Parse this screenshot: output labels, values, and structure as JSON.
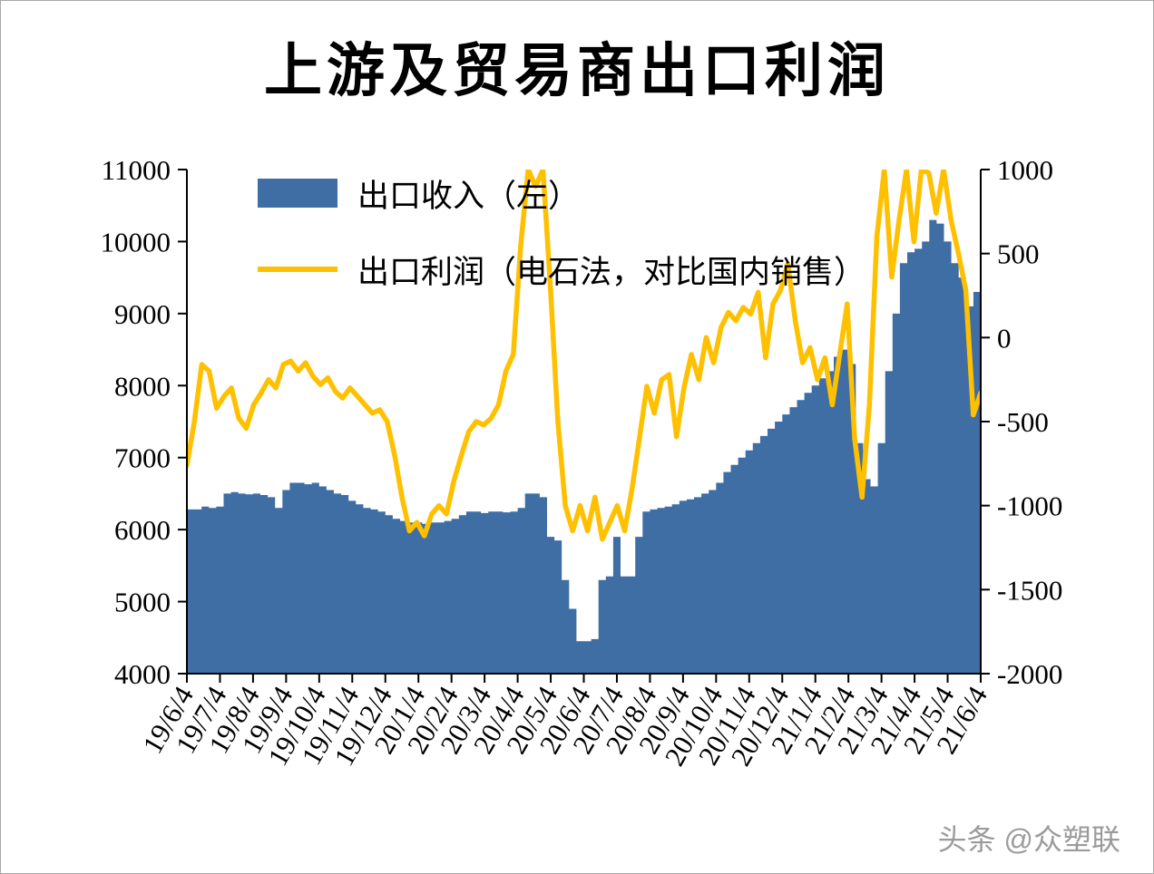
{
  "title": "上游及贸易商出口利润",
  "watermark": "头条 @众塑联",
  "legend": [
    {
      "label": "出口收入（左）",
      "swatch": "area",
      "color": "#3F6EA5"
    },
    {
      "label": "出口利润（电石法，对比国内销售）",
      "swatch": "line",
      "color": "#FFC000"
    }
  ],
  "chart_data": {
    "type": "combo",
    "title": "上游及贸易商出口利润",
    "grid": false,
    "legend_position": "inside-top-left",
    "x_frequency": "weekly",
    "x_tick_labels": [
      "19/6/4",
      "19/7/4",
      "19/8/4",
      "19/9/4",
      "19/10/4",
      "19/11/4",
      "19/12/4",
      "20/1/4",
      "20/2/4",
      "20/3/4",
      "20/4/4",
      "20/5/4",
      "20/6/4",
      "20/7/4",
      "20/8/4",
      "20/9/4",
      "20/10/4",
      "20/11/4",
      "20/12/4",
      "21/1/4",
      "21/2/4",
      "21/3/4",
      "21/4/4",
      "21/5/4",
      "21/6/4"
    ],
    "left_axis": {
      "min": 4000,
      "max": 11000,
      "step": 1000,
      "tick_labels": [
        "4000",
        "5000",
        "6000",
        "7000",
        "8000",
        "9000",
        "10000",
        "11000"
      ]
    },
    "right_axis": {
      "min": -2000,
      "max": 1000,
      "step": 500,
      "tick_labels": [
        "-2000",
        "-1500",
        "-1000",
        "-500",
        "0",
        "500",
        "1000"
      ]
    },
    "series": [
      {
        "name": "出口收入（左）",
        "type": "area-step",
        "axis": "left",
        "color": "#3F6EA5",
        "values": [
          6280,
          6280,
          6320,
          6300,
          6320,
          6500,
          6520,
          6500,
          6490,
          6500,
          6480,
          6450,
          6300,
          6550,
          6650,
          6650,
          6630,
          6650,
          6600,
          6550,
          6500,
          6480,
          6400,
          6350,
          6300,
          6280,
          6250,
          6200,
          6150,
          6120,
          6100,
          6100,
          6080,
          6100,
          6100,
          6120,
          6150,
          6200,
          6250,
          6250,
          6230,
          6250,
          6250,
          6240,
          6250,
          6300,
          6500,
          6500,
          6450,
          5900,
          5850,
          5300,
          4900,
          4450,
          4450,
          4480,
          5300,
          5350,
          5900,
          5350,
          5350,
          5900,
          6250,
          6280,
          6300,
          6320,
          6350,
          6400,
          6420,
          6450,
          6500,
          6550,
          6650,
          6800,
          6900,
          7000,
          7100,
          7200,
          7300,
          7400,
          7500,
          7600,
          7700,
          7800,
          7900,
          8000,
          8100,
          8200,
          8400,
          8500,
          8300,
          7200,
          6700,
          6600,
          7200,
          8200,
          9000,
          9700,
          9850,
          9900,
          10000,
          10300,
          10250,
          10000,
          9700,
          9500,
          9100,
          9300
        ]
      },
      {
        "name": "出口利润（电石法，对比国内销售）",
        "type": "line",
        "axis": "right",
        "color": "#FFC000",
        "values": [
          -760,
          -500,
          -160,
          -200,
          -420,
          -350,
          -300,
          -480,
          -540,
          -400,
          -330,
          -250,
          -300,
          -160,
          -140,
          -200,
          -150,
          -230,
          -280,
          -240,
          -320,
          -360,
          -300,
          -350,
          -400,
          -450,
          -430,
          -500,
          -700,
          -950,
          -1150,
          -1100,
          -1180,
          -1050,
          -1000,
          -1050,
          -850,
          -700,
          -560,
          -500,
          -520,
          -480,
          -400,
          -200,
          -100,
          550,
          1000,
          900,
          1000,
          300,
          -500,
          -1000,
          -1150,
          -1000,
          -1150,
          -950,
          -1200,
          -1100,
          -1000,
          -1150,
          -900,
          -600,
          -290,
          -450,
          -250,
          -220,
          -590,
          -300,
          -100,
          -250,
          0,
          -150,
          60,
          150,
          100,
          180,
          140,
          270,
          -120,
          200,
          280,
          440,
          100,
          -150,
          -60,
          -250,
          -120,
          -400,
          -100,
          200,
          -600,
          -950,
          -400,
          600,
          1000,
          360,
          700,
          1000,
          570,
          1000,
          980,
          740,
          1000,
          700,
          500,
          280,
          -460,
          -330
        ]
      }
    ]
  }
}
